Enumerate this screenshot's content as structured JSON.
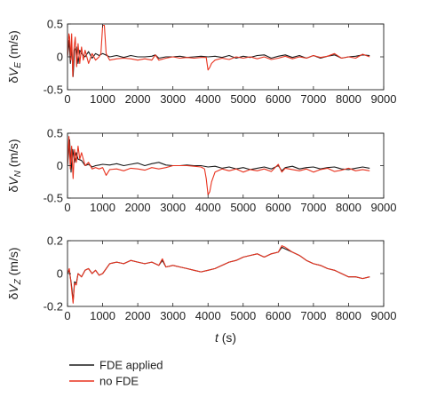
{
  "colors": {
    "fde_applied": "#1a1a1a",
    "no_fde": "#e8321e",
    "axis": "#222222"
  },
  "legend": {
    "placement": "bottom-left",
    "items": [
      "FDE applied",
      "no FDE"
    ]
  },
  "chart_data": [
    {
      "type": "line",
      "ylabel_prefix": "δ",
      "ylabel_var": "V",
      "ylabel_sub": "E",
      "ylabel_unit": "(m/s)",
      "xlim": [
        0,
        9000
      ],
      "ylim": [
        -0.5,
        0.5
      ],
      "yticks": [
        -0.5,
        0,
        0.5
      ],
      "ytick_labels": [
        "-0.5",
        "0",
        "0.5"
      ],
      "xticks": [
        0,
        1000,
        2000,
        3000,
        4000,
        5000,
        6000,
        7000,
        8000,
        9000
      ],
      "xtick_labels": [
        "0",
        "1000",
        "2000",
        "3000",
        "4000",
        "5000",
        "6000",
        "7000",
        "8000",
        "9000"
      ],
      "series": [
        {
          "name": "FDE applied",
          "x": [
            0,
            50,
            80,
            120,
            160,
            200,
            250,
            300,
            350,
            400,
            500,
            600,
            700,
            800,
            900,
            1000,
            1200,
            1400,
            1600,
            1800,
            2000,
            2200,
            2400,
            2500,
            2600,
            2800,
            3000,
            3200,
            3400,
            3600,
            3800,
            4000,
            4200,
            4400,
            4600,
            4800,
            5000,
            5200,
            5400,
            5600,
            5800,
            6000,
            6200,
            6400,
            6600,
            6800,
            7000,
            7200,
            7400,
            7600,
            7800,
            8000,
            8200,
            8400,
            8600
          ],
          "y": [
            0,
            0.25,
            -0.1,
            0.15,
            -0.3,
            0.1,
            0.15,
            -0.1,
            0.1,
            0.05,
            0.0,
            0.08,
            -0.02,
            0.05,
            0.02,
            0.05,
            0.0,
            0.02,
            -0.01,
            0.02,
            0.0,
            0.0,
            0.01,
            0.03,
            -0.02,
            0.0,
            0.0,
            0.01,
            -0.01,
            0.0,
            0.01,
            0.0,
            0.01,
            -0.01,
            0.02,
            -0.02,
            0.01,
            -0.01,
            0.02,
            0.03,
            -0.02,
            0.01,
            0.03,
            -0.01,
            0.02,
            -0.02,
            0.02,
            -0.02,
            0.01,
            0.03,
            -0.02,
            0.0,
            0.01,
            0.03,
            0.02
          ]
        },
        {
          "name": "no FDE",
          "x": [
            0,
            40,
            60,
            90,
            120,
            150,
            180,
            220,
            260,
            300,
            350,
            400,
            450,
            500,
            600,
            700,
            800,
            900,
            950,
            1000,
            1050,
            1100,
            1200,
            1400,
            1600,
            1800,
            2000,
            2200,
            2400,
            2500,
            2600,
            2800,
            3000,
            3200,
            3400,
            3600,
            3800,
            3950,
            4000,
            4050,
            4100,
            4200,
            4400,
            4600,
            4800,
            5000,
            5200,
            5400,
            5600,
            5800,
            6000,
            6200,
            6400,
            6600,
            6800,
            7000,
            7200,
            7400,
            7600,
            7800,
            8000,
            8200,
            8400,
            8600
          ],
          "y": [
            0,
            0.35,
            0.3,
            -0.05,
            0.35,
            -0.3,
            0.1,
            0.3,
            -0.15,
            0.2,
            -0.1,
            0.15,
            -0.05,
            0.1,
            -0.1,
            0.05,
            -0.05,
            0.0,
            0.05,
            0.48,
            0.48,
            0.05,
            -0.05,
            -0.03,
            -0.02,
            -0.03,
            -0.05,
            -0.03,
            -0.05,
            0.03,
            -0.05,
            -0.02,
            0.0,
            -0.02,
            -0.01,
            -0.02,
            -0.01,
            -0.01,
            -0.2,
            -0.16,
            -0.1,
            -0.05,
            -0.02,
            -0.04,
            0.0,
            -0.02,
            0.0,
            -0.03,
            0.0,
            -0.04,
            -0.02,
            0.01,
            -0.03,
            0.0,
            -0.02,
            0.02,
            -0.01,
            0.01,
            0.05,
            -0.02,
            0.0,
            -0.02,
            0.04,
            0.0
          ]
        }
      ]
    },
    {
      "type": "line",
      "ylabel_prefix": "δ",
      "ylabel_var": "V",
      "ylabel_sub": "N",
      "ylabel_unit": "(m/s)",
      "xlim": [
        0,
        9000
      ],
      "ylim": [
        -0.5,
        0.5
      ],
      "yticks": [
        -0.5,
        0,
        0.5
      ],
      "ytick_labels": [
        "-0.5",
        "0",
        "0.5"
      ],
      "xticks": [
        0,
        1000,
        2000,
        3000,
        4000,
        5000,
        6000,
        7000,
        8000,
        9000
      ],
      "xtick_labels": [
        "0",
        "1000",
        "2000",
        "3000",
        "4000",
        "5000",
        "6000",
        "7000",
        "8000",
        "9000"
      ],
      "series": [
        {
          "name": "FDE applied",
          "x": [
            0,
            60,
            100,
            150,
            200,
            250,
            300,
            400,
            500,
            600,
            700,
            800,
            900,
            1000,
            1200,
            1400,
            1600,
            1800,
            2000,
            2200,
            2400,
            2600,
            2800,
            3000,
            3200,
            3400,
            3600,
            3800,
            4000,
            4200,
            4400,
            4600,
            4800,
            5000,
            5200,
            5400,
            5600,
            5800,
            6000,
            6100,
            6200,
            6400,
            6600,
            6800,
            7000,
            7200,
            7400,
            7600,
            7800,
            8000,
            8200,
            8400,
            8600
          ],
          "y": [
            0,
            0.4,
            -0.1,
            0.25,
            0.05,
            0.2,
            0.1,
            0.08,
            0.0,
            0.02,
            -0.02,
            0.0,
            0.01,
            0.02,
            0.01,
            0.03,
            0.0,
            0.02,
            0.04,
            0.0,
            0.03,
            0.05,
            0.01,
            0.0,
            0.0,
            0.01,
            0.0,
            0.0,
            -0.02,
            -0.01,
            -0.04,
            -0.02,
            -0.05,
            -0.03,
            -0.06,
            -0.04,
            -0.02,
            -0.05,
            0.0,
            -0.08,
            -0.03,
            -0.01,
            -0.05,
            -0.03,
            -0.02,
            -0.05,
            -0.03,
            -0.02,
            -0.05,
            -0.06,
            -0.04,
            -0.02,
            -0.04
          ]
        },
        {
          "name": "no FDE",
          "x": [
            0,
            40,
            80,
            120,
            160,
            200,
            250,
            300,
            350,
            400,
            500,
            600,
            700,
            800,
            900,
            1000,
            1100,
            1200,
            1400,
            1600,
            1800,
            2000,
            2200,
            2400,
            2600,
            2800,
            3000,
            3200,
            3400,
            3600,
            3800,
            3900,
            3950,
            4000,
            4050,
            4100,
            4200,
            4400,
            4600,
            4800,
            5000,
            5200,
            5400,
            5600,
            5800,
            6000,
            6100,
            6200,
            6400,
            6600,
            6800,
            7000,
            7200,
            7400,
            7600,
            7800,
            8000,
            8200,
            8400,
            8600
          ],
          "y": [
            0,
            0.45,
            -0.05,
            0.3,
            -0.2,
            0.25,
            0.05,
            0.3,
            0.1,
            0.2,
            0.0,
            0.05,
            -0.05,
            -0.03,
            -0.05,
            -0.03,
            -0.15,
            -0.06,
            -0.05,
            -0.08,
            -0.04,
            -0.05,
            -0.07,
            -0.03,
            -0.05,
            -0.03,
            0.0,
            0.0,
            0.0,
            -0.01,
            -0.02,
            -0.05,
            -0.2,
            -0.45,
            -0.4,
            -0.25,
            -0.1,
            -0.05,
            -0.08,
            -0.05,
            -0.1,
            -0.06,
            -0.08,
            -0.05,
            -0.09,
            0.02,
            -0.1,
            -0.04,
            -0.06,
            -0.08,
            -0.05,
            -0.1,
            -0.06,
            -0.04,
            -0.09,
            -0.07,
            -0.04,
            -0.08,
            -0.06,
            -0.08
          ]
        }
      ]
    },
    {
      "type": "line",
      "ylabel_prefix": "δ",
      "ylabel_var": "V",
      "ylabel_sub": "Z",
      "ylabel_unit": "(m/s)",
      "xlabel_var": "t",
      "xlabel_unit": "(s)",
      "xlim": [
        0,
        9000
      ],
      "ylim": [
        -0.2,
        0.2
      ],
      "yticks": [
        -0.2,
        0,
        0.2
      ],
      "ytick_labels": [
        "-0.2",
        "0",
        "0.2"
      ],
      "xticks": [
        0,
        1000,
        2000,
        3000,
        4000,
        5000,
        6000,
        7000,
        8000,
        9000
      ],
      "xtick_labels": [
        "0",
        "1000",
        "2000",
        "3000",
        "4000",
        "5000",
        "6000",
        "7000",
        "8000",
        "9000"
      ],
      "series": [
        {
          "name": "FDE applied",
          "x": [
            0,
            50,
            100,
            130,
            160,
            200,
            250,
            300,
            400,
            500,
            600,
            700,
            800,
            900,
            1000,
            1200,
            1400,
            1600,
            1800,
            2000,
            2200,
            2400,
            2600,
            2700,
            2800,
            3000,
            3200,
            3400,
            3600,
            3800,
            4000,
            4200,
            4400,
            4600,
            4800,
            5000,
            5200,
            5400,
            5600,
            5800,
            6000,
            6100,
            6200,
            6400,
            6600,
            6800,
            7000,
            7200,
            7400,
            7600,
            7800,
            8000,
            8200,
            8400,
            8600
          ],
          "y": [
            0,
            0.02,
            -0.05,
            -0.1,
            -0.17,
            -0.05,
            -0.06,
            0.0,
            -0.02,
            0.02,
            0.03,
            0.0,
            0.02,
            -0.01,
            0.0,
            0.06,
            0.07,
            0.06,
            0.08,
            0.07,
            0.06,
            0.07,
            0.05,
            0.08,
            0.04,
            0.05,
            0.04,
            0.03,
            0.02,
            0.01,
            0.02,
            0.03,
            0.05,
            0.07,
            0.08,
            0.1,
            0.11,
            0.12,
            0.1,
            0.12,
            0.13,
            0.16,
            0.15,
            0.13,
            0.11,
            0.08,
            0.06,
            0.05,
            0.03,
            0.02,
            0.0,
            -0.02,
            -0.02,
            -0.03,
            -0.02
          ]
        },
        {
          "name": "no FDE",
          "x": [
            0,
            50,
            100,
            130,
            160,
            200,
            250,
            300,
            400,
            500,
            600,
            700,
            800,
            900,
            1000,
            1200,
            1400,
            1600,
            1800,
            2000,
            2200,
            2400,
            2600,
            2700,
            2800,
            3000,
            3200,
            3400,
            3600,
            3800,
            4000,
            4200,
            4400,
            4600,
            4800,
            5000,
            5200,
            5400,
            5600,
            5800,
            6000,
            6100,
            6200,
            6400,
            6600,
            6800,
            7000,
            7200,
            7400,
            7600,
            7800,
            8000,
            8200,
            8400,
            8600
          ],
          "y": [
            0,
            0.03,
            -0.06,
            -0.12,
            -0.18,
            -0.06,
            -0.07,
            0.0,
            -0.02,
            0.02,
            0.03,
            0.0,
            0.02,
            -0.01,
            0.0,
            0.06,
            0.07,
            0.06,
            0.08,
            0.07,
            0.06,
            0.07,
            0.05,
            0.09,
            0.04,
            0.05,
            0.04,
            0.03,
            0.02,
            0.01,
            0.02,
            0.03,
            0.05,
            0.07,
            0.08,
            0.1,
            0.11,
            0.12,
            0.1,
            0.12,
            0.13,
            0.17,
            0.16,
            0.13,
            0.11,
            0.08,
            0.06,
            0.05,
            0.03,
            0.02,
            0.0,
            -0.02,
            -0.02,
            -0.03,
            -0.02
          ]
        }
      ]
    }
  ]
}
